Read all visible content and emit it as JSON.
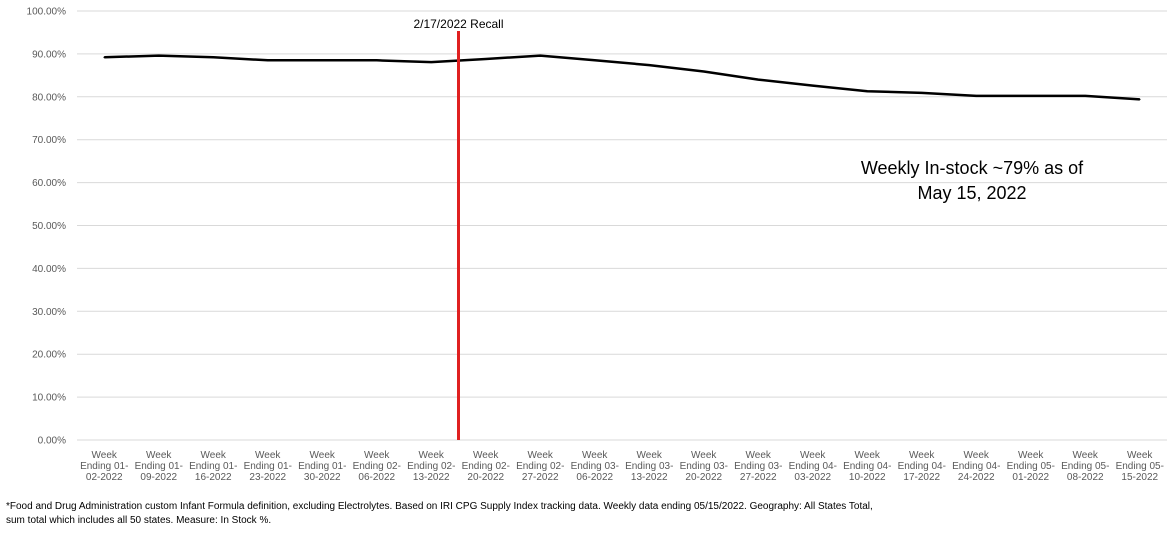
{
  "chart_data": {
    "type": "line",
    "title": "",
    "xlabel": "",
    "ylabel": "",
    "ylim": [
      0,
      100
    ],
    "y_tick_labels": [
      "0.00%",
      "10.00%",
      "20.00%",
      "30.00%",
      "40.00%",
      "50.00%",
      "60.00%",
      "70.00%",
      "80.00%",
      "90.00%",
      "100.00%"
    ],
    "grid": true,
    "legend": "none",
    "categories": [
      [
        "Week",
        "Ending 01-",
        "02-2022"
      ],
      [
        "Week",
        "Ending 01-",
        "09-2022"
      ],
      [
        "Week",
        "Ending 01-",
        "16-2022"
      ],
      [
        "Week",
        "Ending 01-",
        "23-2022"
      ],
      [
        "Week",
        "Ending 01-",
        "30-2022"
      ],
      [
        "Week",
        "Ending 02-",
        "06-2022"
      ],
      [
        "Week",
        "Ending 02-",
        "13-2022"
      ],
      [
        "Week",
        "Ending 02-",
        "20-2022"
      ],
      [
        "Week",
        "Ending 02-",
        "27-2022"
      ],
      [
        "Week",
        "Ending 03-",
        "06-2022"
      ],
      [
        "Week",
        "Ending 03-",
        "13-2022"
      ],
      [
        "Week",
        "Ending 03-",
        "20-2022"
      ],
      [
        "Week",
        "Ending 03-",
        "27-2022"
      ],
      [
        "Week",
        "Ending 04-",
        "03-2022"
      ],
      [
        "Week",
        "Ending 04-",
        "10-2022"
      ],
      [
        "Week",
        "Ending 04-",
        "17-2022"
      ],
      [
        "Week",
        "Ending 04-",
        "24-2022"
      ],
      [
        "Week",
        "Ending 05-",
        "01-2022"
      ],
      [
        "Week",
        "Ending 05-",
        "08-2022"
      ],
      [
        "Week",
        "Ending 05-",
        "15-2022"
      ]
    ],
    "series": [
      {
        "values": [
          89.2,
          89.6,
          89.2,
          88.5,
          88.5,
          88.5,
          88.1,
          88.8,
          89.6,
          88.5,
          87.4,
          85.9,
          84.0,
          82.6,
          81.3,
          80.9,
          80.2,
          80.2,
          80.2,
          79.4
        ],
        "color": "#000000"
      }
    ],
    "annotations": [
      {
        "label": "2/17/2022 Recall",
        "x_between": [
          6,
          7
        ],
        "color": "#e02020",
        "type": "vertical-line"
      },
      {
        "lines": [
          "Weekly In-stock ~79% as of",
          "May 15, 2022"
        ],
        "type": "text"
      }
    ]
  },
  "footnote": {
    "line1": "*Food and Drug Administration custom Infant Formula definition, excluding Electrolytes. Based on IRI CPG Supply Index tracking data. Weekly    data ending 05/15/2022. Geography: All States Total,",
    "line2": "sum total which includes all 50 states. Measure: In Stock %."
  },
  "colors": {
    "grid": "#d9d9d9",
    "line": "#000000",
    "recall": "#e02020"
  }
}
